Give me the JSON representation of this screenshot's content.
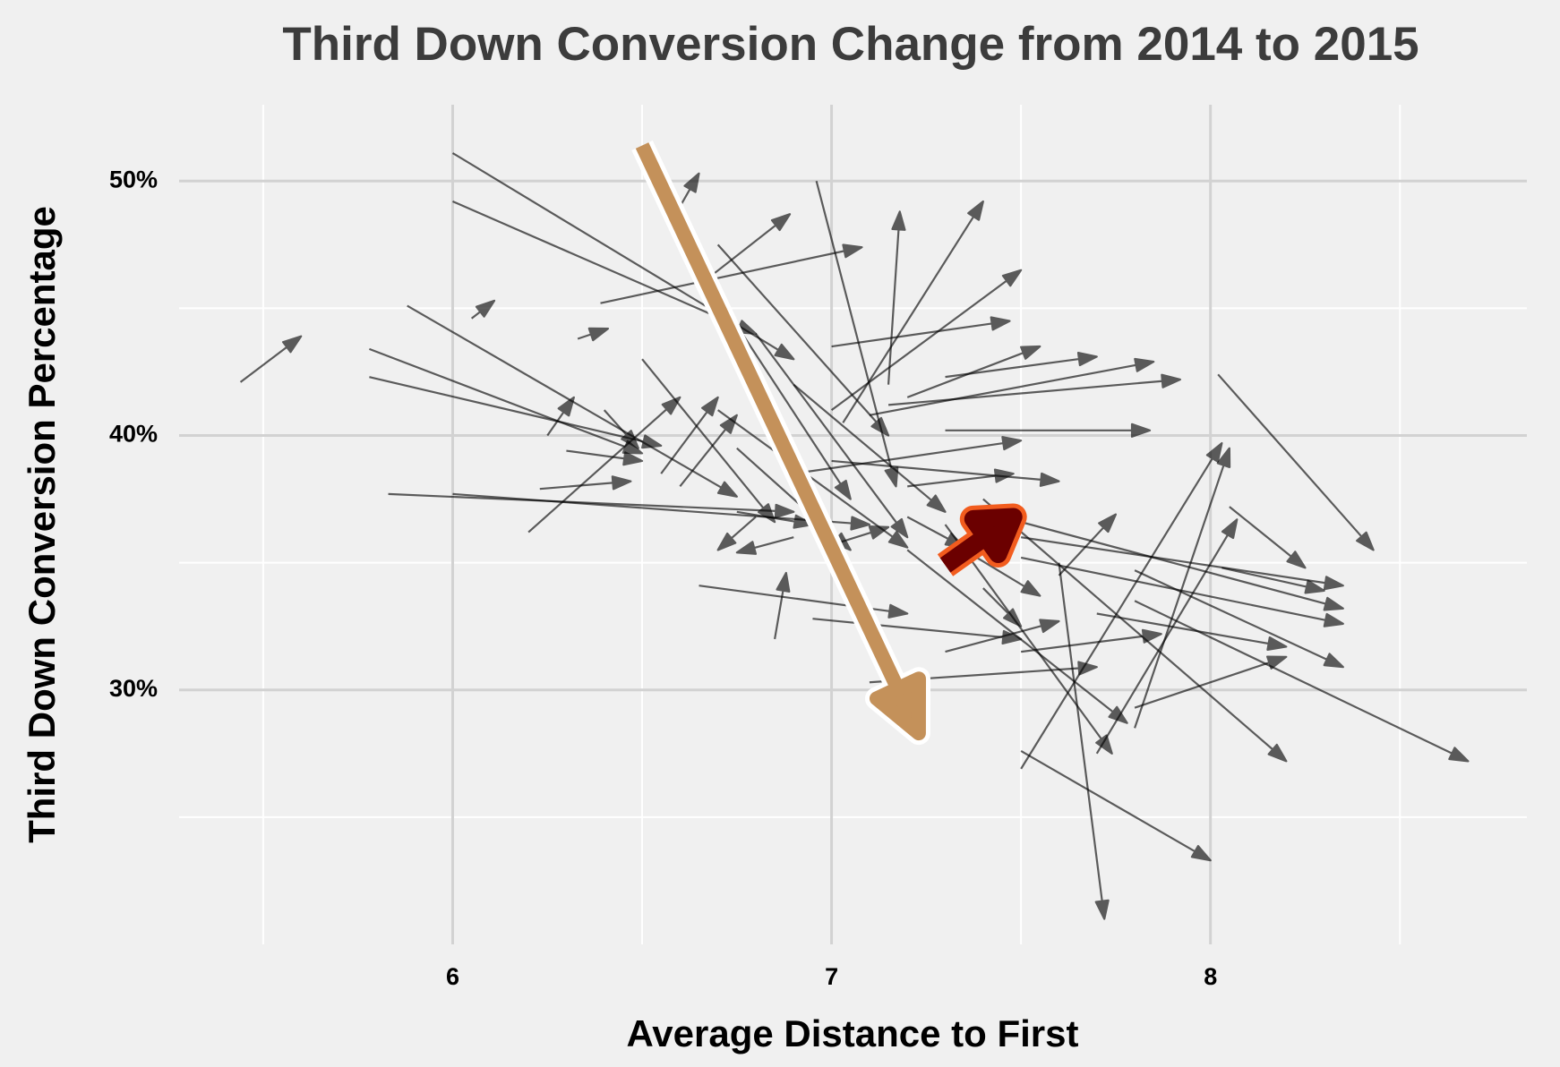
{
  "chart_data": {
    "type": "arrow",
    "title": "Third Down Conversion Change from 2014 to 2015",
    "x_label": "Average Distance to First",
    "y_label": "Third Down Conversion Percentage",
    "xlim": [
      5.278,
      8.835
    ],
    "ylim": [
      20,
      53
    ],
    "xticks": [
      6,
      7,
      8
    ],
    "yticks": [
      {
        "value": 30,
        "label": "30%"
      },
      {
        "value": 40,
        "label": "40%"
      },
      {
        "value": 50,
        "label": "50%"
      }
    ],
    "xminorticks": [
      5.5,
      6.5,
      7.5,
      8.5
    ],
    "yminorticks": [
      25,
      35,
      45
    ],
    "grid": true,
    "color": "#000000",
    "x_start": [
      5.44,
      6.0,
      6.0,
      6.05,
      5.78,
      5.78,
      5.88,
      5.83,
      6.0,
      6.23,
      6.2,
      6.25,
      6.33,
      6.39,
      6.65,
      6.6,
      6.96,
      7.15,
      7.03,
      7.0,
      7.0,
      7.2,
      7.3,
      7.15,
      7.1,
      7.3,
      8.02,
      7.8,
      7.7,
      7.5,
      7.8,
      7.8,
      7.5,
      7.6,
      7.4,
      7.3,
      7.2,
      7.1,
      7.5,
      7.4,
      7.5,
      7.8,
      7.7,
      8.05,
      8.03,
      6.65,
      6.85,
      6.95,
      7.1,
      7.3,
      7.5,
      6.7,
      6.6,
      6.5,
      6.75,
      6.9,
      6.8,
      6.65,
      6.7,
      6.9,
      7.0,
      7.2,
      6.3,
      6.4,
      6.55,
      6.75,
      6.8,
      6.9,
      7.0,
      7.2,
      7.4,
      7.35,
      7.6
    ],
    "y_start": [
      42.1,
      51.1,
      49.2,
      44.6,
      43.4,
      42.3,
      45.1,
      37.7,
      37.7,
      37.9,
      36.2,
      40.0,
      43.8,
      45.2,
      45.9,
      49.0,
      50.0,
      42.0,
      40.5,
      41.0,
      43.5,
      41.5,
      42.3,
      41.2,
      40.8,
      40.2,
      42.4,
      28.5,
      27.5,
      26.9,
      29.3,
      33.5,
      27.6,
      35.0,
      37.5,
      36.5,
      35.5,
      33.0,
      36.0,
      37.0,
      35.2,
      34.7,
      33.0,
      37.2,
      34.8,
      34.1,
      32.0,
      32.8,
      30.3,
      31.5,
      31.5,
      41.0,
      38.0,
      43.0,
      39.5,
      42.0,
      44.0,
      46.6,
      47.5,
      38.5,
      39.0,
      38.0,
      39.4,
      41.0,
      38.5,
      37.0,
      36.8,
      36.0,
      35.7,
      36.8,
      34.0,
      35.5,
      34.5
    ],
    "x_end": [
      5.6,
      6.9,
      6.8,
      6.11,
      6.5,
      6.55,
      6.75,
      6.9,
      7.1,
      6.47,
      6.6,
      6.32,
      6.41,
      7.08,
      6.89,
      6.65,
      7.17,
      7.18,
      7.4,
      7.5,
      7.47,
      7.55,
      7.7,
      7.92,
      7.85,
      7.84,
      8.43,
      8.05,
      8.07,
      8.03,
      8.2,
      8.68,
      8.0,
      7.72,
      8.2,
      7.74,
      7.78,
      7.25,
      8.35,
      8.35,
      8.35,
      8.35,
      8.2,
      8.25,
      8.3,
      7.2,
      6.88,
      7.5,
      7.7,
      7.6,
      7.87,
      7.2,
      6.75,
      6.85,
      7.05,
      7.3,
      7.2,
      7.05,
      7.15,
      7.5,
      7.6,
      7.48,
      6.5,
      6.49,
      6.7,
      6.95,
      6.7,
      6.75,
      7.15,
      7.35,
      7.5,
      7.55,
      7.75
    ],
    "y_end": [
      43.9,
      43.0,
      44.0,
      45.3,
      39.3,
      39.6,
      37.6,
      37.0,
      36.5,
      38.2,
      41.5,
      41.5,
      44.2,
      47.4,
      48.7,
      50.3,
      38.0,
      48.8,
      49.2,
      46.5,
      44.5,
      43.5,
      43.1,
      42.2,
      42.9,
      40.2,
      35.5,
      39.5,
      36.7,
      39.7,
      31.3,
      27.2,
      23.3,
      21.0,
      27.2,
      27.5,
      28.7,
      28.6,
      34.1,
      33.2,
      32.6,
      30.9,
      31.7,
      34.8,
      33.9,
      33.0,
      34.6,
      32.0,
      30.9,
      32.7,
      32.2,
      35.6,
      40.8,
      36.6,
      35.5,
      37.0,
      36.0,
      37.5,
      40.0,
      39.8,
      38.2,
      38.5,
      39.0,
      39.5,
      41.5,
      36.5,
      35.5,
      35.4,
      36.4,
      35.6,
      32.5,
      33.7,
      36.9
    ],
    "highlights": [
      {
        "x": [
          6.5,
          7.23
        ],
        "y": [
          51.4,
          28.3
        ],
        "color": "#c4915a",
        "outline": "#ffffff"
      },
      {
        "x": [
          7.3,
          7.48
        ],
        "y": [
          34.9,
          36.8
        ],
        "color": "#6b0000",
        "outline": "#f25c1e"
      }
    ]
  }
}
